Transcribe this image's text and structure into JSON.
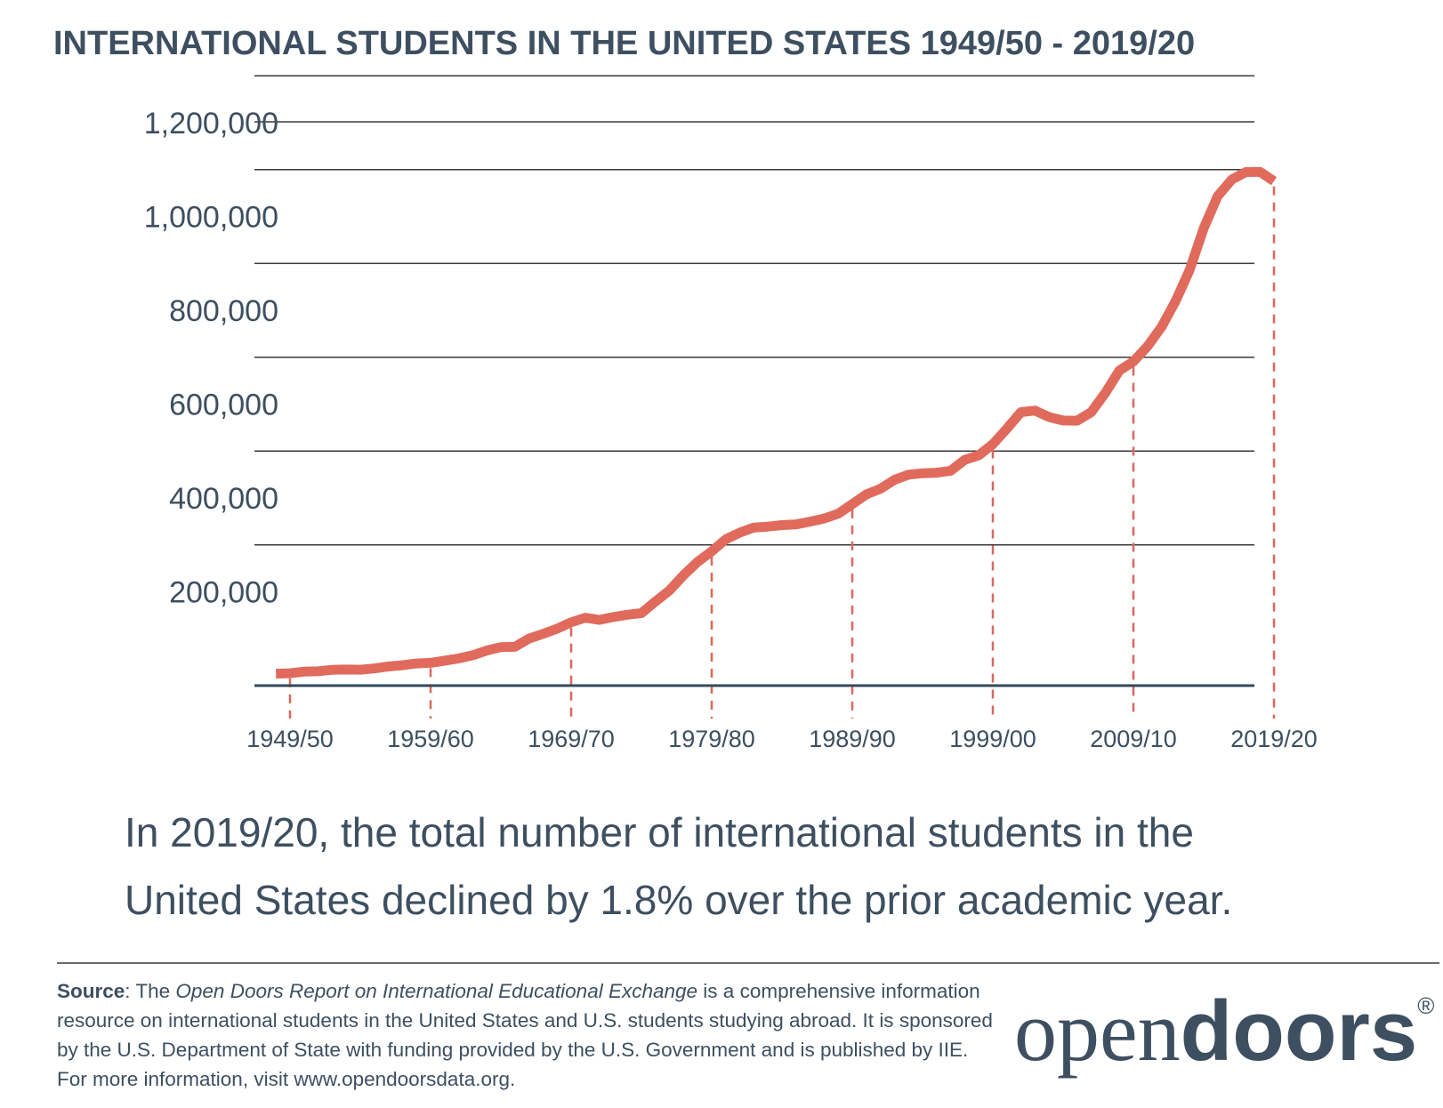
{
  "title": "INTERNATIONAL STUDENTS IN THE UNITED STATES 1949/50 - 2019/20",
  "summary": {
    "line1": "In 2019/20, the total number of international students in the",
    "line2": "United States declined by 1.8% over the prior academic year."
  },
  "source": {
    "label": "Source",
    "pre": ": The ",
    "report": "Open Doors Report on International Educational Exchange",
    "post": " is a comprehensive information resource on international students in the United States and U.S. students studying abroad. It is sponsored by the U.S. Department of State with funding provided by the U.S. Government and is published by IIE. For more information, visit www.opendoorsdata.org."
  },
  "logo": {
    "part1": "open",
    "part2": "doors",
    "reg": "®"
  },
  "colors": {
    "line": "#e06a5c",
    "dash": "#d9685c",
    "text": "#3d4f60",
    "grid": "#3a3a3a",
    "baseline": "#344a5c"
  },
  "chart_data": {
    "type": "line",
    "ylim": [
      0,
      1200000
    ],
    "yticks": [
      200000,
      400000,
      600000,
      800000,
      1000000,
      1200000
    ],
    "ytick_labels": [
      "200,000",
      "400,000",
      "600,000",
      "800,000",
      "1,000,000",
      "1,200,000"
    ],
    "xticks": [
      "1949/50",
      "1959/60",
      "1969/70",
      "1979/80",
      "1989/90",
      "1999/00",
      "2009/10",
      "2019/20"
    ],
    "x_start_year": 1949,
    "series": [
      {
        "x": [
          1948,
          1949,
          1950,
          1951,
          1952,
          1953,
          1954,
          1955,
          1956,
          1957,
          1958,
          1959,
          1960,
          1961,
          1962,
          1963,
          1964,
          1965,
          1966,
          1967,
          1968,
          1969,
          1970,
          1971,
          1972,
          1973,
          1974,
          1975,
          1976,
          1977,
          1978,
          1979,
          1980,
          1981,
          1982,
          1983,
          1984,
          1985,
          1986,
          1987,
          1988,
          1989,
          1990,
          1991,
          1992,
          1993,
          1994,
          1995,
          1996,
          1997,
          1998,
          1999,
          2000,
          2001,
          2002,
          2003,
          2004,
          2005,
          2006,
          2007,
          2008,
          2009,
          2010,
          2011,
          2012,
          2013,
          2014,
          2015,
          2016,
          2017,
          2018,
          2019
        ],
        "values": [
          25464,
          26433,
          29813,
          30462,
          33675,
          34232,
          34009,
          36494,
          40666,
          43391,
          47245,
          48486,
          53107,
          58086,
          64705,
          74814,
          82045,
          82709,
          100262,
          110315,
          121362,
          134959,
          144708,
          140126,
          146097,
          151066,
          154580,
          179344,
          203068,
          235509,
          263938,
          286343,
          311882,
          326299,
          336985,
          338894,
          342113,
          343777,
          349609,
          356187,
          366354,
          386851,
          407529,
          419585,
          438618,
          449749,
          452635,
          453787,
          457984,
          481280,
          490933,
          514723,
          547867,
          582996,
          586323,
          572509,
          565039,
          564766,
          582984,
          623805,
          671616,
          690923,
          723277,
          764495,
          819644,
          886052,
          974926,
          1043839,
          1078822,
          1094792,
          1095299,
          1075496
        ]
      }
    ]
  }
}
